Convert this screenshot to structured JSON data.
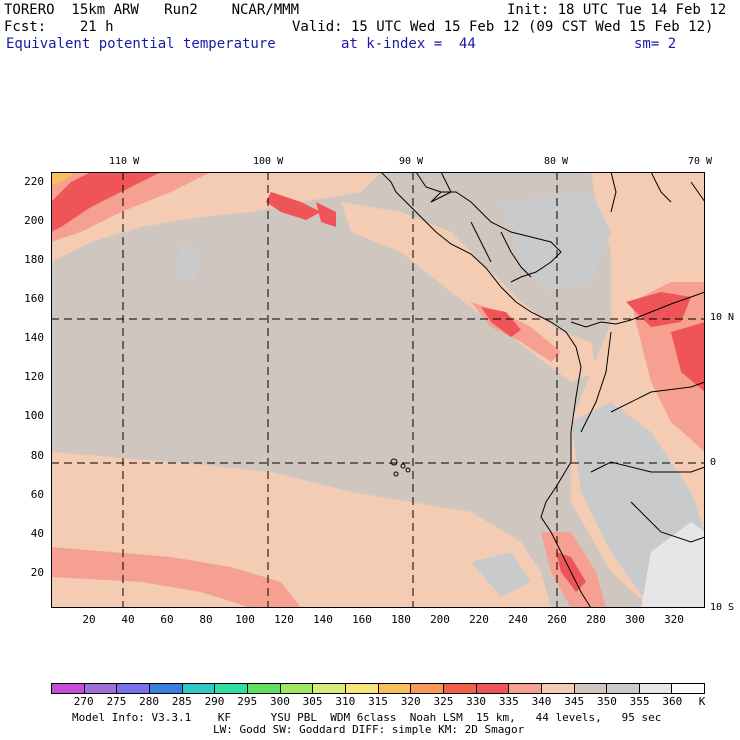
{
  "header": {
    "model": "TORERO  15km ARW   Run2    NCAR/MMM",
    "init": "Init: 18 UTC Tue 14 Feb 12",
    "fcst": "Fcst:    21 h",
    "valid": "Valid: 15 UTC Wed 15 Feb 12 (09 CST Wed 15 Feb 12)",
    "field": "Equivalent potential temperature",
    "level": "at k-index =  44",
    "smooth": "sm= 2"
  },
  "axes": {
    "y_ticks": [
      "220",
      "200",
      "180",
      "160",
      "140",
      "120",
      "100",
      "80",
      "60",
      "40",
      "20"
    ],
    "x_ticks": [
      "20",
      "40",
      "60",
      "80",
      "100",
      "120",
      "140",
      "160",
      "180",
      "200",
      "220",
      "240",
      "260",
      "280",
      "300",
      "320"
    ],
    "lon_labels": [
      "110 W",
      "100 W",
      "90 W",
      "80 W",
      "70 W"
    ],
    "lat_labels": [
      "10 N",
      "0",
      "10 S"
    ]
  },
  "colorbar": {
    "labels": [
      "270",
      "275",
      "280",
      "285",
      "290",
      "295",
      "300",
      "305",
      "310",
      "315",
      "320",
      "325",
      "330",
      "335",
      "340",
      "345",
      "350",
      "355",
      "360"
    ],
    "unit": "K",
    "colors": [
      "#c44fd6",
      "#9f6fdc",
      "#7a70e8",
      "#3a7fe0",
      "#2ec8c8",
      "#2ee0a0",
      "#5fe060",
      "#9de860",
      "#d6ec7a",
      "#f7e67a",
      "#f7c05a",
      "#f7985a",
      "#f06048",
      "#ef5558",
      "#f5a090",
      "#f4ccb4",
      "#d0c6c0",
      "#c8cacc",
      "#e6e6e6",
      "#ffffff"
    ]
  },
  "footer": {
    "line1": "Model Info: V3.3.1    KF      YSU PBL  WDM 6class  Noah LSM  15 km,   44 levels,   95 sec",
    "line2": "LW: Godd SW: Goddard DIFF: simple KM: 2D Smagor"
  }
}
